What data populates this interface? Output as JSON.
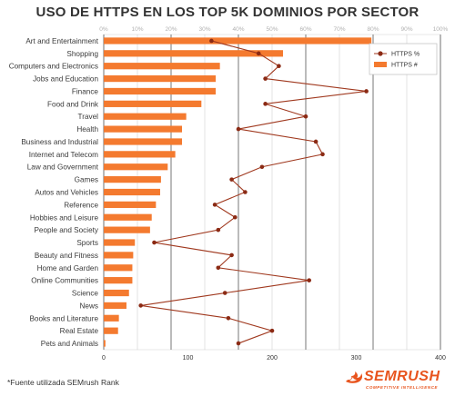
{
  "chart_data": {
    "type": "bar",
    "title": "USO DE HTTPS EN LOS TOP 5K DOMINIOS POR SECTOR",
    "categories": [
      "Art and Entertainment",
      "Shopping",
      "Computers and Electronics",
      "Jobs and Education",
      "Finance",
      "Food and Drink",
      "Travel",
      "Health",
      "Business and Industrial",
      "Internet and Telecom",
      "Law and Government",
      "Games",
      "Autos and Vehicles",
      "Reference",
      "Hobbies and Leisure",
      "People and Society",
      "Sports",
      "Beauty and Fitness",
      "Home and Garden",
      "Online Communities",
      "Science",
      "News",
      "Books and Literature",
      "Real Estate",
      "Pets and Animals"
    ],
    "series": [
      {
        "name": "HTTPS #",
        "type": "bar",
        "axis": "bottom",
        "color": "#f47a2f",
        "values": [
          318,
          213,
          138,
          133,
          133,
          116,
          98,
          93,
          93,
          85,
          76,
          68,
          67,
          62,
          57,
          55,
          37,
          35,
          34,
          34,
          30,
          27,
          18,
          17,
          2
        ]
      },
      {
        "name": "HTTPS %",
        "type": "line",
        "axis": "top",
        "color": "#a0391f",
        "marker_color": "#8b2a14",
        "values": [
          32,
          46,
          52,
          48,
          78,
          48,
          60,
          40,
          63,
          65,
          47,
          38,
          42,
          33,
          39,
          34,
          15,
          38,
          34,
          61,
          36,
          11,
          37,
          50,
          40
        ]
      }
    ],
    "x_bottom": {
      "ticks": [
        "0",
        "100",
        "200",
        "300",
        "400"
      ],
      "range": [
        0,
        400
      ]
    },
    "x_top": {
      "ticks": [
        "0%",
        "10%",
        "20%",
        "30%",
        "40%",
        "50%",
        "60%",
        "70%",
        "80%",
        "90%",
        "100%"
      ],
      "range": [
        0,
        100
      ]
    },
    "grid": true,
    "legend_position": "top-right"
  },
  "footnote": "*Fuente utilizada SEMrush Rank",
  "brand": {
    "name": "SEMRUSH",
    "tagline": "COMPETITIVE INTELLIGENCE",
    "color": "#e8541e"
  }
}
